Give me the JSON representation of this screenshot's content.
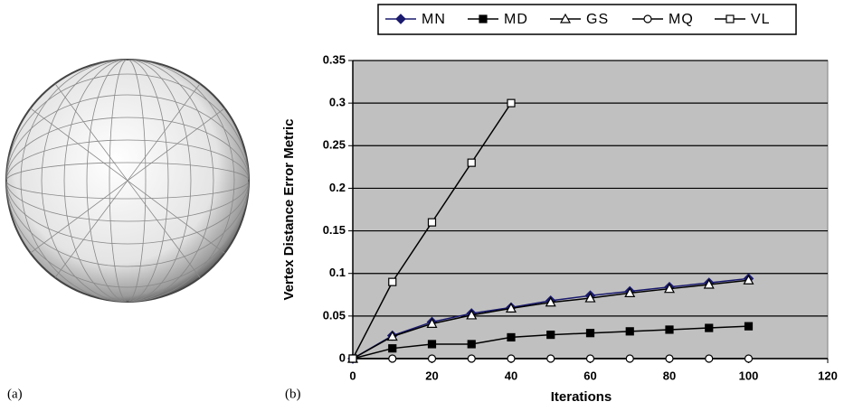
{
  "panels": {
    "a": "(a)",
    "b": "(b)"
  },
  "chart_data": {
    "type": "line",
    "x_label": "Iterations",
    "y_label": "Vertex Distance Error Metric",
    "x": [
      0,
      10,
      20,
      30,
      40,
      50,
      60,
      70,
      80,
      90,
      100
    ],
    "series": [
      {
        "name": "MN",
        "color": "#1a1a6e",
        "marker": "diamond-filled",
        "values": [
          0,
          0.027,
          0.043,
          0.053,
          0.06,
          0.068,
          0.074,
          0.079,
          0.084,
          0.089,
          0.094
        ]
      },
      {
        "name": "MD",
        "color": "#000000",
        "marker": "square-filled",
        "values": [
          0,
          0.012,
          0.017,
          0.017,
          0.025,
          0.028,
          0.03,
          0.032,
          0.034,
          0.036,
          0.038
        ]
      },
      {
        "name": "GS",
        "color": "#000000",
        "marker": "triangle-open",
        "values": [
          0,
          0.026,
          0.041,
          0.051,
          0.059,
          0.066,
          0.071,
          0.077,
          0.082,
          0.087,
          0.092
        ]
      },
      {
        "name": "MQ",
        "color": "#000000",
        "marker": "circle-open",
        "values": [
          0,
          0,
          0,
          0,
          0,
          0,
          0,
          0,
          0,
          0,
          0
        ]
      },
      {
        "name": "VL",
        "color": "#000000",
        "marker": "square-open",
        "values": [
          0,
          0.09,
          0.16,
          0.23,
          0.3,
          null,
          null,
          null,
          null,
          null,
          null
        ]
      }
    ],
    "xlim": [
      0,
      120
    ],
    "xticks": [
      0,
      20,
      40,
      60,
      80,
      100,
      120
    ],
    "ylim": [
      0,
      0.35
    ],
    "yticks": [
      0,
      0.05,
      0.1,
      0.15,
      0.2,
      0.25,
      0.3,
      0.35
    ],
    "grid": true,
    "legend": "top",
    "plot_background": "#c0c0c0"
  }
}
